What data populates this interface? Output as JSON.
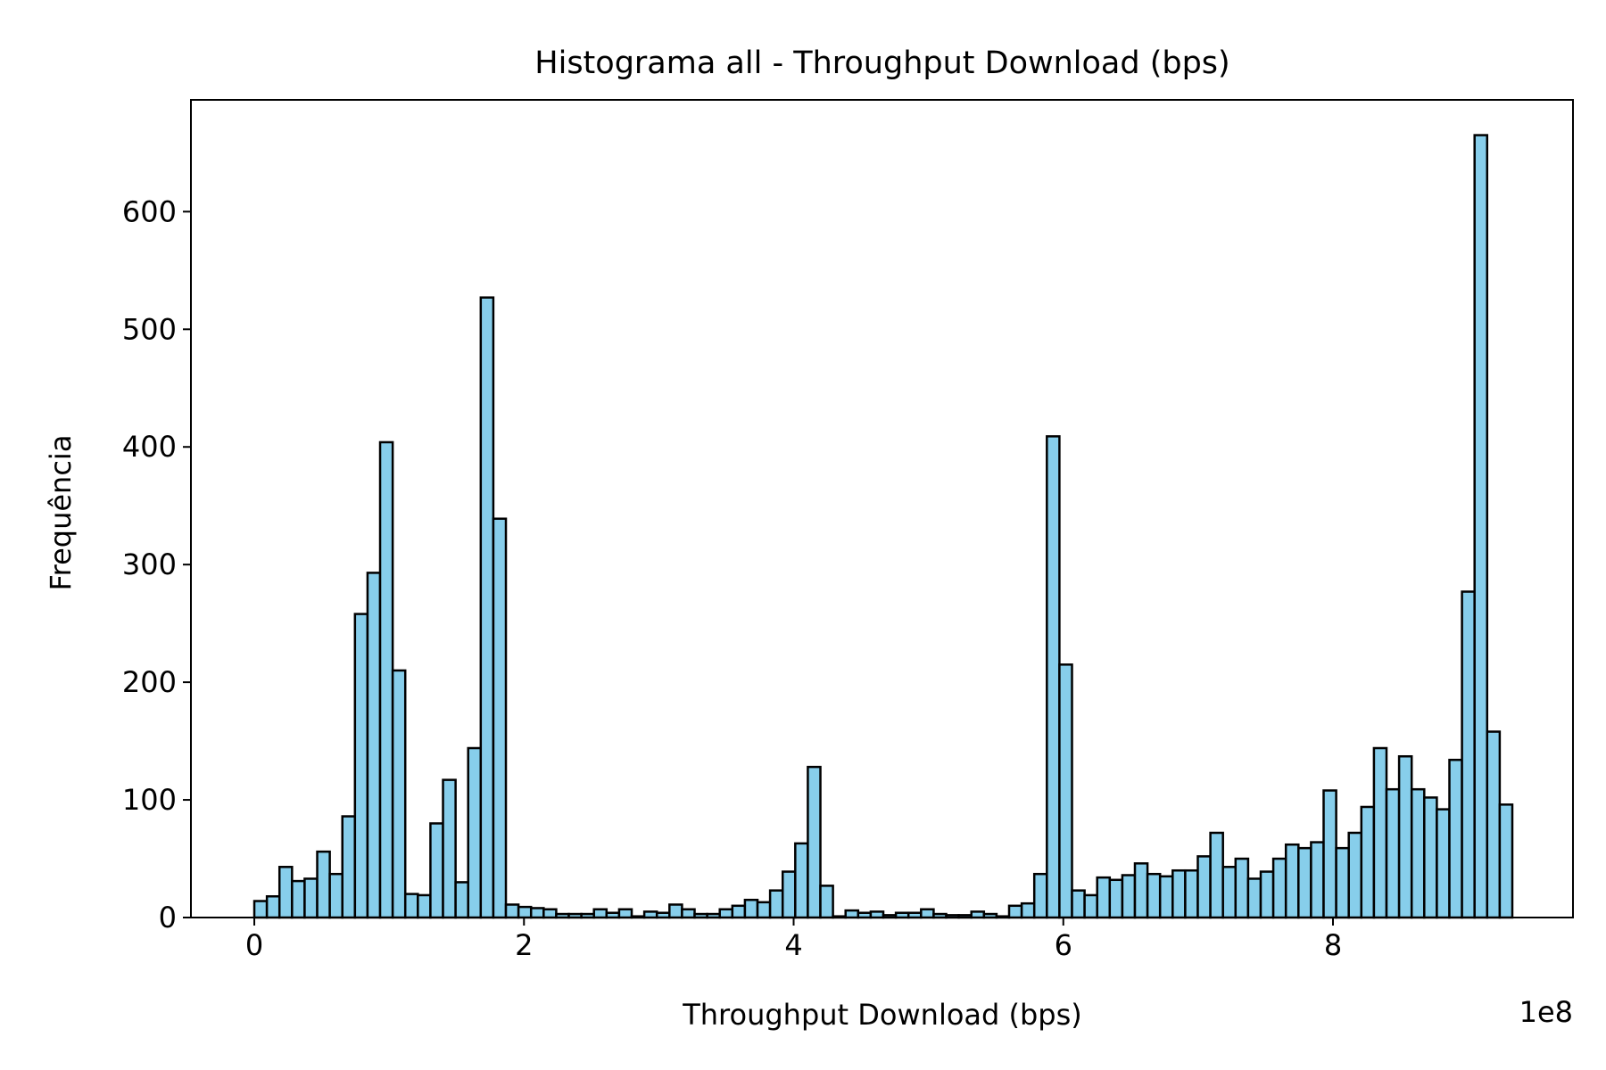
{
  "chart_data": {
    "type": "bar",
    "title": "Histograma all - Throughput Download (bps)",
    "xlabel": "Throughput Download (bps)",
    "ylabel": "Frequência",
    "x_offset_label": "1e8",
    "xlim": [
      -0.47,
      9.78
    ],
    "ylim": [
      0,
      695
    ],
    "x_ticks": [
      0,
      2,
      4,
      6,
      8
    ],
    "x_tick_labels": [
      "0",
      "2",
      "4",
      "6",
      "8"
    ],
    "y_ticks": [
      0,
      100,
      200,
      300,
      400,
      500,
      600
    ],
    "y_tick_labels": [
      "0",
      "100",
      "200",
      "300",
      "400",
      "500",
      "600"
    ],
    "grid": false,
    "bin_start": 0.0,
    "bin_width": 0.0933,
    "bar_color": "#87CEEB",
    "edge_color": "#000000",
    "values": [
      14,
      18,
      43,
      31,
      33,
      56,
      37,
      86,
      258,
      293,
      404,
      210,
      20,
      19,
      80,
      117,
      30,
      144,
      527,
      339,
      11,
      9,
      8,
      7,
      3,
      3,
      3,
      7,
      4,
      7,
      1,
      5,
      4,
      11,
      7,
      3,
      3,
      7,
      10,
      15,
      13,
      23,
      39,
      63,
      128,
      27,
      1,
      6,
      4,
      5,
      2,
      4,
      4,
      7,
      3,
      2,
      2,
      5,
      3,
      1,
      10,
      12,
      37,
      409,
      215,
      23,
      19,
      34,
      32,
      36,
      46,
      37,
      35,
      40,
      40,
      52,
      72,
      43,
      50,
      33,
      39,
      50,
      62,
      59,
      64,
      108,
      59,
      72,
      94,
      144,
      109,
      137,
      109,
      102,
      92,
      134,
      277,
      665,
      158,
      96
    ]
  }
}
